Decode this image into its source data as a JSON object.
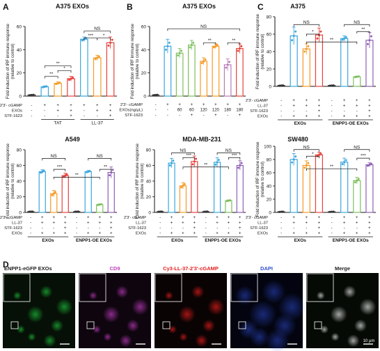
{
  "panels": [
    {
      "letter": "A",
      "title": "A375 EXOs",
      "ylabel": "Fold induction of IRF immune response (relative to control)",
      "ylim": [
        0,
        60
      ],
      "yticks": [
        0,
        20,
        40,
        60
      ],
      "rowLabels": [
        "2'3'- cGAMP",
        "EXOs",
        "STF-1623"
      ],
      "rows": [
        [
          "-",
          "+",
          "+",
          "+",
          "+",
          "+",
          "+"
        ],
        [
          "-",
          "-",
          "+",
          "+",
          "-",
          "+",
          "+"
        ],
        [
          "-",
          "-",
          "-",
          "+",
          "-",
          "-",
          "+"
        ]
      ],
      "groups": [
        {
          "label": "TAT",
          "from": 1,
          "to": 3
        },
        {
          "label": "LL-37",
          "from": 4,
          "to": 6
        }
      ],
      "groupRows": [],
      "colors": [
        "#333333",
        "#3aa6dd",
        "#f59a23",
        "#e8403a",
        "#3aa6dd",
        "#f59a23",
        "#e8403a"
      ],
      "values": [
        1,
        8,
        11,
        15,
        49,
        33,
        46
      ],
      "errors": [
        0.3,
        0.8,
        1.2,
        2.0,
        2.0,
        2.2,
        5.0
      ],
      "brackets": [
        {
          "a": 1,
          "b": 2,
          "y": 17,
          "label": "**"
        },
        {
          "a": 2,
          "b": 3,
          "y": 22,
          "label": "*"
        },
        {
          "a": 1,
          "b": 3,
          "y": 26,
          "label": "**"
        },
        {
          "a": 4,
          "b": 5,
          "y": 50,
          "label": "***"
        },
        {
          "a": 5,
          "b": 6,
          "y": 50,
          "label": "*"
        },
        {
          "a": 4,
          "b": 6,
          "y": 56,
          "label": "NS"
        }
      ]
    },
    {
      "letter": "B",
      "title": "A375 EXOs",
      "ylabel": "Fold induction of IRF immune response (relative to control)",
      "ylim": [
        0,
        60
      ],
      "yticks": [
        0,
        20,
        40,
        60
      ],
      "rowLabels": [
        "2'3'- cGAMP",
        "EXOs(ng/μL)",
        "STF-1623"
      ],
      "rows": [
        [
          "-",
          "+",
          "+",
          "+",
          "+",
          "+",
          "+",
          "+"
        ],
        [
          "-",
          "-",
          "60",
          "60",
          "120",
          "120",
          "180",
          "180"
        ],
        [
          "-",
          "-",
          "-",
          "+",
          "-",
          "+",
          "-",
          "+"
        ]
      ],
      "groups": [],
      "groupRows": [],
      "colors": [
        "#333333",
        "#3aa6dd",
        "#7cbf5c",
        "#7cbf5c",
        "#f59a23",
        "#f59a23",
        "#b87bb5",
        "#e8403a"
      ],
      "values": [
        1,
        43,
        37,
        44,
        30,
        43,
        27,
        41
      ],
      "errors": [
        0.3,
        6,
        4,
        4,
        3,
        2,
        5,
        4
      ],
      "brackets": [
        {
          "a": 4,
          "b": 5,
          "y": 46,
          "label": "**"
        },
        {
          "a": 6,
          "b": 7,
          "y": 46,
          "label": "**"
        },
        {
          "a": 1,
          "b": 7,
          "y": 58,
          "label": "NS"
        }
      ]
    },
    {
      "letter": "C",
      "title": "A375",
      "ylabel": "Fold induction of IRF immune response (relative to control)",
      "ylim": [
        0,
        80
      ],
      "yticks": [
        0,
        20,
        40,
        60,
        80
      ],
      "rowLabels": [
        "2'3'- cGAMP",
        "LL-37",
        "STF-1623",
        "EXOs"
      ],
      "rows": [
        [
          "-",
          "+",
          "+",
          "+",
          "-",
          "+",
          "+",
          "+"
        ],
        [
          "-",
          "+",
          "+",
          "+",
          "-",
          "+",
          "+",
          "+"
        ],
        [
          "-",
          "-",
          "-",
          "+",
          "-",
          "-",
          "-",
          "+"
        ],
        [
          "-",
          "+",
          "+",
          "+",
          "-",
          "+",
          "+",
          "+"
        ]
      ],
      "groups": [],
      "groupRows": [
        {
          "label": "EXOs",
          "from": 0,
          "to": 3
        },
        {
          "label": "ENPP1-OE EXOs",
          "from": 4,
          "to": 7
        }
      ],
      "colors": [
        "#333333",
        "#3aa6dd",
        "#f59a23",
        "#e8403a",
        "#333333",
        "#3aa6dd",
        "#7cbf5c",
        "#8e5fb5"
      ],
      "values": [
        1,
        58,
        43,
        59,
        1,
        55,
        11,
        53
      ],
      "errors": [
        0.3,
        10,
        6,
        8,
        0.3,
        3,
        0.8,
        9
      ],
      "brackets": [
        {
          "a": 2,
          "b": 3,
          "y": 60,
          "label": "*"
        },
        {
          "a": 1,
          "b": 3,
          "y": 71,
          "label": "NS"
        },
        {
          "a": 6,
          "b": 7,
          "y": 63,
          "label": "**"
        },
        {
          "a": 5,
          "b": 7,
          "y": 71,
          "label": "NS"
        },
        {
          "a": 2,
          "b": 6,
          "y": 51,
          "label": "**"
        }
      ]
    },
    {
      "letter": "",
      "title": "A549",
      "ylabel": "Fold induction of IRF immune response (relative to control)",
      "ylim": [
        0,
        80
      ],
      "yticks": [
        0,
        20,
        40,
        60,
        80
      ],
      "rowLabels": [
        "2'3'- cGAMP",
        "LL-37",
        "STF-1623",
        "EXOs"
      ],
      "rows": [
        [
          "-",
          "+",
          "+",
          "+",
          "-",
          "+",
          "+",
          "+"
        ],
        [
          "-",
          "+",
          "+",
          "+",
          "-",
          "+",
          "+",
          "+"
        ],
        [
          "-",
          "-",
          "-",
          "+",
          "-",
          "-",
          "-",
          "+"
        ],
        [
          "-",
          "+",
          "+",
          "+",
          "-",
          "+",
          "+",
          "+"
        ]
      ],
      "groups": [],
      "groupRows": [
        {
          "label": "EXOs",
          "from": 0,
          "to": 3
        },
        {
          "label": "ENPP1-OE EXOs",
          "from": 4,
          "to": 7
        }
      ],
      "colors": [
        "#333333",
        "#3aa6dd",
        "#f59a23",
        "#e8403a",
        "#333333",
        "#3aa6dd",
        "#7cbf5c",
        "#8e5fb5"
      ],
      "values": [
        1,
        52,
        24,
        47,
        1,
        52,
        10,
        51
      ],
      "errors": [
        0.3,
        2.5,
        4,
        3,
        0.3,
        1.5,
        0.8,
        7
      ],
      "brackets": [
        {
          "a": 2,
          "b": 3,
          "y": 55,
          "label": "***"
        },
        {
          "a": 1,
          "b": 3,
          "y": 69,
          "label": "NS"
        },
        {
          "a": 6,
          "b": 7,
          "y": 55,
          "label": "**"
        },
        {
          "a": 5,
          "b": 7,
          "y": 69,
          "label": "NS"
        },
        {
          "a": 2,
          "b": 6,
          "y": 45,
          "label": "**"
        }
      ]
    },
    {
      "letter": "",
      "title": "MDA-MB-231",
      "ylabel": "Fold induction of IRF immune response (relative to control)",
      "ylim": [
        0,
        80
      ],
      "yticks": [
        0,
        20,
        40,
        60,
        80
      ],
      "rowLabels": [
        "2'3'- cGAMP",
        "LL-37",
        "STF-1623",
        "EXOs"
      ],
      "rows": [
        [
          "-",
          "+",
          "+",
          "+",
          "-",
          "+",
          "+",
          "+"
        ],
        [
          "-",
          "+",
          "+",
          "+",
          "-",
          "+",
          "+",
          "+"
        ],
        [
          "-",
          "-",
          "-",
          "+",
          "-",
          "-",
          "-",
          "+"
        ],
        [
          "-",
          "+",
          "+",
          "+",
          "-",
          "+",
          "+",
          "+"
        ]
      ],
      "groups": [],
      "groupRows": [
        {
          "label": "EXOs",
          "from": 0,
          "to": 3
        },
        {
          "label": "ENPP1-OE EXOs",
          "from": 4,
          "to": 7
        }
      ],
      "colors": [
        "#333333",
        "#3aa6dd",
        "#f59a23",
        "#e8403a",
        "#333333",
        "#3aa6dd",
        "#7cbf5c",
        "#8e5fb5"
      ],
      "values": [
        1,
        63,
        34,
        65,
        1,
        64,
        15,
        60
      ],
      "errors": [
        0.3,
        6,
        4,
        7,
        0.3,
        6,
        1,
        6
      ],
      "brackets": [
        {
          "a": 2,
          "b": 3,
          "y": 70,
          "label": "***"
        },
        {
          "a": 1,
          "b": 3,
          "y": 76,
          "label": "NS"
        },
        {
          "a": 6,
          "b": 7,
          "y": 70,
          "label": "***"
        },
        {
          "a": 5,
          "b": 7,
          "y": 76,
          "label": "NS"
        },
        {
          "a": 2,
          "b": 6,
          "y": 58,
          "label": "**"
        }
      ]
    },
    {
      "letter": "",
      "title": "SW480",
      "ylabel": "Fold induction of IRF immune response (relative to control)",
      "ylim": [
        0,
        100
      ],
      "yticks": [
        0,
        20,
        40,
        60,
        80,
        100
      ],
      "rowLabels": [
        "2'3'- cGAMP",
        "LL-37",
        "STF-1623",
        "EXOs"
      ],
      "rows": [
        [
          "-",
          "+",
          "+",
          "+",
          "-",
          "+",
          "+",
          "+"
        ],
        [
          "-",
          "+",
          "+",
          "+",
          "-",
          "+",
          "+",
          "+"
        ],
        [
          "-",
          "-",
          "-",
          "+",
          "-",
          "-",
          "-",
          "+"
        ],
        [
          "-",
          "+",
          "+",
          "+",
          "-",
          "+",
          "+",
          "+"
        ]
      ],
      "groups": [],
      "groupRows": [
        {
          "label": "EXOs",
          "from": 0,
          "to": 3
        },
        {
          "label": "ENPP1-OE EXOs",
          "from": 4,
          "to": 7
        }
      ],
      "colors": [
        "#333333",
        "#3aa6dd",
        "#f59a23",
        "#e8403a",
        "#333333",
        "#3aa6dd",
        "#7cbf5c",
        "#8e5fb5"
      ],
      "values": [
        1,
        80,
        71,
        87,
        1,
        76,
        48,
        72
      ],
      "errors": [
        0.3,
        9,
        7,
        4,
        0.3,
        6,
        5,
        3
      ],
      "brackets": [
        {
          "a": 2,
          "b": 3,
          "y": 85,
          "label": "*"
        },
        {
          "a": 1,
          "b": 3,
          "y": 95,
          "label": "NS"
        },
        {
          "a": 6,
          "b": 7,
          "y": 82,
          "label": "***"
        },
        {
          "a": 5,
          "b": 7,
          "y": 95,
          "label": "NS"
        },
        {
          "a": 2,
          "b": 6,
          "y": 66,
          "label": "**"
        }
      ]
    }
  ],
  "panelD": {
    "letter": "D",
    "labels": [
      {
        "text": "ENPP1-eGFP EXOs",
        "color": "#222222"
      },
      {
        "text": "CD9",
        "color": "#c040c0"
      },
      {
        "text": "Cy3-LL-37-2'3'-cGAMP",
        "color": "#e02020"
      },
      {
        "text": "DAPI",
        "color": "#3050d0"
      },
      {
        "text": "Merge",
        "color": "#222222"
      }
    ],
    "scalebar": "10 μm"
  }
}
